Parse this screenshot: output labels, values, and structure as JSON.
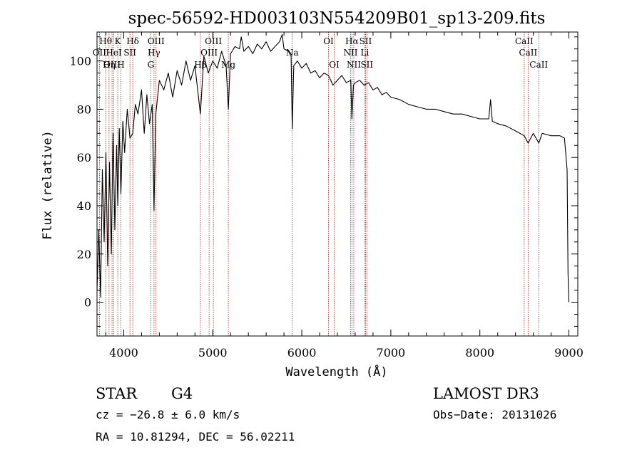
{
  "chart_data": {
    "type": "line",
    "title": "spec-56592-HD003103N554209B01_sp13-209.fits",
    "xlabel": "Wavelength (Å)",
    "ylabel": "Flux (relative)",
    "xlim": [
      3700,
      9100
    ],
    "ylim": [
      -14,
      112
    ],
    "xticks": [
      4000,
      5000,
      6000,
      7000,
      8000,
      9000
    ],
    "yticks": [
      0,
      20,
      40,
      60,
      80,
      100
    ],
    "grid": false,
    "series": [
      {
        "name": "flux",
        "x": [
          3700,
          3720,
          3740,
          3760,
          3780,
          3800,
          3820,
          3840,
          3860,
          3880,
          3900,
          3920,
          3933,
          3950,
          3968,
          3990,
          4010,
          4040,
          4070,
          4101,
          4130,
          4160,
          4200,
          4230,
          4260,
          4290,
          4320,
          4340,
          4360,
          4400,
          4450,
          4500,
          4550,
          4600,
          4650,
          4700,
          4750,
          4800,
          4861,
          4900,
          4950,
          5000,
          5050,
          5100,
          5150,
          5175,
          5200,
          5250,
          5300,
          5320,
          5350,
          5400,
          5450,
          5500,
          5550,
          5600,
          5650,
          5700,
          5750,
          5780,
          5800,
          5850,
          5880,
          5893,
          5910,
          5950,
          6000,
          6050,
          6100,
          6150,
          6200,
          6250,
          6300,
          6350,
          6400,
          6450,
          6500,
          6550,
          6563,
          6580,
          6600,
          6650,
          6700,
          6750,
          6800,
          6850,
          6900,
          6950,
          7000,
          7100,
          7200,
          7300,
          7400,
          7500,
          7600,
          7700,
          7800,
          7900,
          8000,
          8100,
          8120,
          8140,
          8200,
          8300,
          8400,
          8498,
          8542,
          8600,
          8662,
          8700,
          8800,
          8900,
          8950,
          8980,
          8990,
          9000
        ],
        "values": [
          5,
          30,
          2,
          55,
          25,
          62,
          15,
          58,
          20,
          70,
          30,
          65,
          40,
          72,
          45,
          75,
          62,
          80,
          68,
          70,
          82,
          78,
          88,
          70,
          86,
          74,
          82,
          38,
          78,
          92,
          88,
          95,
          85,
          96,
          90,
          100,
          92,
          98,
          78,
          102,
          95,
          100,
          97,
          104,
          98,
          80,
          103,
          106,
          105,
          110,
          104,
          106,
          103,
          107,
          105,
          108,
          104,
          106,
          108,
          111,
          105,
          104,
          102,
          72,
          98,
          100,
          97,
          99,
          95,
          96,
          93,
          95,
          94,
          90,
          92,
          94,
          91,
          92,
          76,
          90,
          91,
          92,
          90,
          91,
          88,
          89,
          86,
          87,
          85,
          84,
          82,
          81,
          80,
          80,
          79,
          78,
          78,
          77,
          76,
          76,
          84,
          75,
          74,
          73,
          71,
          69,
          66,
          70,
          66,
          70,
          69,
          69,
          68,
          55,
          12,
          0
        ]
      }
    ],
    "spectral_lines": [
      {
        "label": "Hθ",
        "wavelength": 3797,
        "label_row": 1
      },
      {
        "label": "OII",
        "wavelength": 3727,
        "label_row": 2
      },
      {
        "label": "OIII",
        "wavelength": 3869,
        "label_row": 3
      },
      {
        "label": "Hη",
        "wavelength": 3835,
        "label_row": 3
      },
      {
        "label": "K",
        "wavelength": 3933,
        "label_row": 1
      },
      {
        "label": "HeI",
        "wavelength": 3889,
        "label_row": 2
      },
      {
        "label": "H",
        "wavelength": 3968,
        "label_row": 3
      },
      {
        "label": "Hδ",
        "wavelength": 4101,
        "label_row": 1
      },
      {
        "label": "SII",
        "wavelength": 4070,
        "label_row": 2
      },
      {
        "label": "OIII",
        "wavelength": 4363,
        "label_row": 1
      },
      {
        "label": "Hγ",
        "wavelength": 4340,
        "label_row": 2
      },
      {
        "label": "G",
        "wavelength": 4304,
        "label_row": 3
      },
      {
        "label": "OIII",
        "wavelength": 5007,
        "label_row": 1
      },
      {
        "label": "OIII",
        "wavelength": 4959,
        "label_row": 2
      },
      {
        "label": "Hβ",
        "wavelength": 4861,
        "label_row": 3
      },
      {
        "label": "Mg",
        "wavelength": 5175,
        "label_row": 3
      },
      {
        "label": "Na",
        "wavelength": 5893,
        "label_row": 2
      },
      {
        "label": "OI",
        "wavelength": 6300,
        "label_row": 1
      },
      {
        "label": "OI",
        "wavelength": 6364,
        "label_row": 3
      },
      {
        "label": "Hα",
        "wavelength": 6563,
        "label_row": 1
      },
      {
        "label": "NII",
        "wavelength": 6548,
        "label_row": 2
      },
      {
        "label": "NII",
        "wavelength": 6584,
        "label_row": 3
      },
      {
        "label": "SII",
        "wavelength": 6716,
        "label_row": 1
      },
      {
        "label": "Li",
        "wavelength": 6708,
        "label_row": 2
      },
      {
        "label": "SII",
        "wavelength": 6731,
        "label_row": 3
      },
      {
        "label": "CaII",
        "wavelength": 8498,
        "label_row": 1
      },
      {
        "label": "CaII",
        "wavelength": 8542,
        "label_row": 2
      },
      {
        "label": "CaII",
        "wavelength": 8662,
        "label_row": 3
      }
    ]
  },
  "info": {
    "class_label": "STAR",
    "subclass": "G4",
    "survey": "LAMOST DR3",
    "cz": "cz = −26.8 ± 6.0 km/s",
    "obs_date": "Obs−Date: 20131026",
    "coords": "RA =  10.81294, DEC =  56.02211"
  },
  "colors": {
    "spectrum": "#000000",
    "line_marker": "#b22222",
    "axes": "#000000"
  }
}
